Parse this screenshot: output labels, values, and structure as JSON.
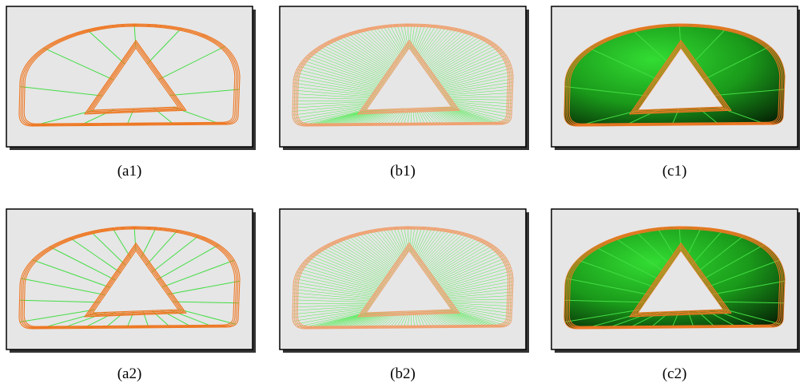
{
  "figure": {
    "panels": [
      {
        "caption": "(a1)"
      },
      {
        "caption": "(b1)"
      },
      {
        "caption": "(c1)"
      },
      {
        "caption": "(a2)"
      },
      {
        "caption": "(b2)"
      },
      {
        "caption": "(c2)"
      }
    ]
  }
}
